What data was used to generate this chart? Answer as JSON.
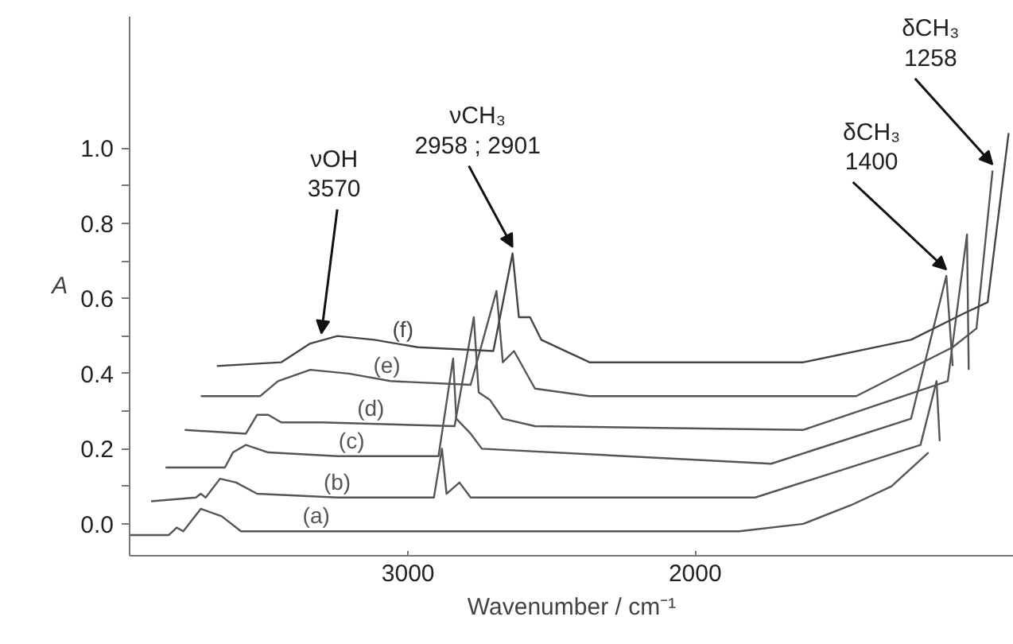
{
  "chart_data": {
    "type": "line",
    "xlabel": "Wavenumber / cm⁻¹",
    "ylabel": "A",
    "xlim": [
      3970,
      890
    ],
    "xticks": [
      3000,
      2000
    ],
    "ylim": [
      -0.085,
      1.35
    ],
    "yticks": [
      {
        "value": 0,
        "label": "0.0"
      },
      {
        "value": 0.1,
        "label": null
      },
      0.2,
      {
        "value": 0.3,
        "label": null
      },
      0.4,
      {
        "value": 0.5,
        "label": null
      },
      0.6,
      {
        "value": 0.7,
        "label": null
      },
      0.8,
      {
        "value": 0.9,
        "label": null
      },
      {
        "value": 1,
        "label": "1.0"
      }
    ],
    "grid": false,
    "line_style": "solid",
    "marker": "none",
    "series": [
      {
        "name": "(a)",
        "color": "#555555",
        "x": [
          3968,
          3834,
          3806,
          3783,
          3722,
          3649,
          3582,
          3470,
          1847,
          1623,
          1456,
          1316,
          1187
        ],
        "values": [
          -0.03,
          -0.03,
          -0.01,
          -0.02,
          0.04,
          0.02,
          -0.02,
          -0.02,
          -0.02,
          0.0,
          0.05,
          0.1,
          0.19
        ]
      },
      {
        "name": "(b)",
        "color": "#555555",
        "x": [
          3895,
          3739,
          3722,
          3705,
          3655,
          3599,
          3526,
          3246,
          2910,
          2882,
          2866,
          2821,
          2782,
          1791,
          1215,
          1159,
          1148
        ],
        "values": [
          0.06,
          0.07,
          0.08,
          0.07,
          0.12,
          0.11,
          0.08,
          0.07,
          0.07,
          0.2,
          0.08,
          0.11,
          0.07,
          0.07,
          0.21,
          0.38,
          0.22
        ]
      },
      {
        "name": "(c)",
        "color": "#555555",
        "x": [
          3845,
          3638,
          3610,
          3565,
          3487,
          3246,
          2894,
          2843,
          2832,
          2782,
          2743,
          1735,
          1248,
          1125,
          1103
        ],
        "values": [
          0.15,
          0.15,
          0.19,
          0.21,
          0.19,
          0.18,
          0.18,
          0.44,
          0.28,
          0.24,
          0.2,
          0.16,
          0.28,
          0.66,
          0.42
        ]
      },
      {
        "name": "(d)",
        "color": "#555555",
        "x": [
          3778,
          3565,
          3526,
          3487,
          3442,
          3302,
          2838,
          2771,
          2754,
          2715,
          2670,
          2558,
          1623,
          1120,
          1053,
          1047
        ],
        "values": [
          0.25,
          0.24,
          0.29,
          0.29,
          0.27,
          0.27,
          0.26,
          0.55,
          0.35,
          0.33,
          0.28,
          0.26,
          0.25,
          0.38,
          0.77,
          0.41
        ]
      },
      {
        "name": "(e)",
        "color": "#555555",
        "x": [
          3722,
          3515,
          3453,
          3341,
          3207,
          3062,
          2782,
          2692,
          2670,
          2631,
          2558,
          2368,
          1439,
          1103,
          1020,
          964
        ],
        "values": [
          0.34,
          0.34,
          0.38,
          0.41,
          0.4,
          0.38,
          0.37,
          0.62,
          0.43,
          0.46,
          0.36,
          0.34,
          0.34,
          0.47,
          0.52,
          0.94
        ]
      },
      {
        "name": "(f)",
        "color": "#444444",
        "x": [
          3666,
          3442,
          3341,
          3246,
          3118,
          2966,
          2703,
          2636,
          2614,
          2575,
          2536,
          2368,
          1623,
          1248,
          1064,
          981,
          908
        ],
        "values": [
          0.42,
          0.43,
          0.48,
          0.5,
          0.49,
          0.47,
          0.46,
          0.72,
          0.55,
          0.55,
          0.49,
          0.43,
          0.43,
          0.49,
          0.56,
          0.59,
          1.04
        ]
      }
    ],
    "annotations": [
      {
        "text": "νOH\n3570",
        "x": 3302,
        "y": 0.49
      },
      {
        "text": "νCH₃\n2958 ; 2901",
        "x": 2636,
        "y": 0.72
      },
      {
        "text": "δCH₃\n1400",
        "x": 1125,
        "y": 0.66
      },
      {
        "text": "δCH₃\n1258",
        "x": 964,
        "y": 0.94
      }
    ]
  }
}
